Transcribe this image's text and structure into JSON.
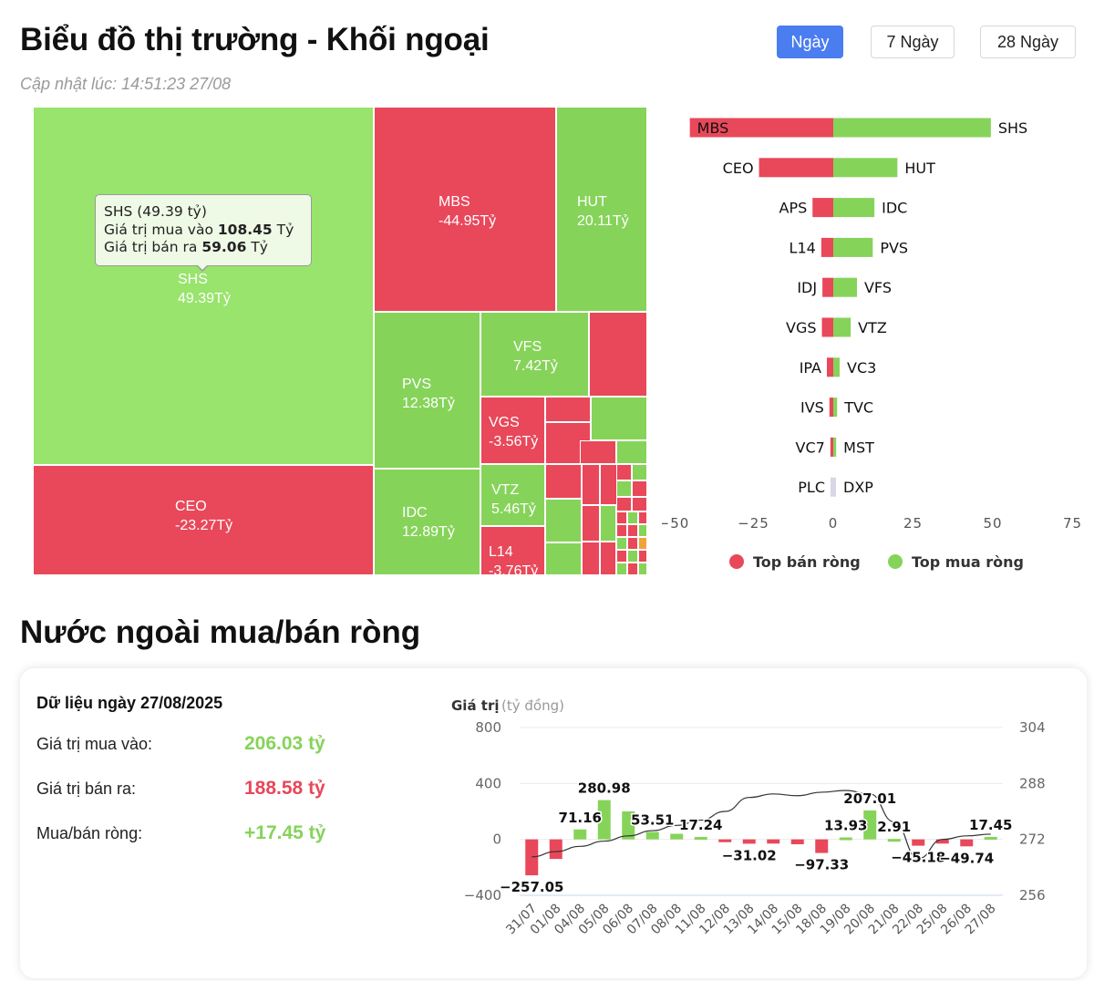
{
  "header": {
    "title": "Biểu đồ thị trường - Khối ngoại",
    "updated": "Cập nhật lúc: 14:51:23 27/08",
    "ranges": [
      "Ngày",
      "7 Ngày",
      "28 Ngày"
    ],
    "active_range": "Ngày"
  },
  "colors": {
    "positive": "#86d35a",
    "positive_light": "#98e46c",
    "negative": "#e8485a",
    "neutral": "#f0a33a",
    "accent": "#4a7df0"
  },
  "tooltip": {
    "title": "SHS (49.39 tỷ)",
    "buy_label": "Giá trị mua vào",
    "buy_value": "108.45",
    "sell_label": "Giá trị bán ra",
    "sell_value": "59.06",
    "unit": "Tỷ"
  },
  "section2": {
    "title": "Nước ngoài mua/bán ròng",
    "date_label": "Dữ liệu ngày 27/08/2025",
    "stats": [
      {
        "label": "Giá trị mua vào:",
        "value": "206.03 tỷ",
        "tone": "positive"
      },
      {
        "label": "Giá trị bán ra:",
        "value": "188.58 tỷ",
        "tone": "negative"
      },
      {
        "label": "Mua/bán ròng:",
        "value": "+17.45 tỷ",
        "tone": "positive"
      }
    ]
  },
  "chart_data": [
    {
      "type": "treemap",
      "unit": "Tỷ",
      "items": [
        {
          "name": "SHS",
          "label": "49.39Tỷ",
          "value": 49.39
        },
        {
          "name": "MBS",
          "label": "-44.95Tỷ",
          "value": -44.95
        },
        {
          "name": "HUT",
          "label": "20.11Tỷ",
          "value": 20.11
        },
        {
          "name": "CEO",
          "label": "-23.27Tỷ",
          "value": -23.27
        },
        {
          "name": "PVS",
          "label": "12.38Tỷ",
          "value": 12.38
        },
        {
          "name": "IDC",
          "label": "12.89Tỷ",
          "value": 12.89
        },
        {
          "name": "VFS",
          "label": "7.42Tỷ",
          "value": 7.42
        },
        {
          "name": "VGS",
          "label": "-3.56Tỷ",
          "value": -3.56
        },
        {
          "name": "VTZ",
          "label": "5.46Tỷ",
          "value": 5.46
        },
        {
          "name": "L14",
          "label": "-3.76Tỷ",
          "value": -3.76
        }
      ]
    },
    {
      "type": "bar",
      "orientation": "horizontal-diverging",
      "xlim": [
        -50,
        75
      ],
      "xticks": [
        "−50",
        "−25",
        "0",
        "25",
        "50",
        "75"
      ],
      "rows": [
        {
          "sell": "MBS",
          "sell_value": -44.95,
          "buy": "SHS",
          "buy_value": 49.39
        },
        {
          "sell": "CEO",
          "sell_value": -23.27,
          "buy": "HUT",
          "buy_value": 20.11
        },
        {
          "sell": "APS",
          "sell_value": -6.5,
          "buy": "IDC",
          "buy_value": 12.89
        },
        {
          "sell": "L14",
          "sell_value": -3.76,
          "buy": "PVS",
          "buy_value": 12.38
        },
        {
          "sell": "IDJ",
          "sell_value": -3.4,
          "buy": "VFS",
          "buy_value": 7.42
        },
        {
          "sell": "VGS",
          "sell_value": -3.56,
          "buy": "VTZ",
          "buy_value": 5.46
        },
        {
          "sell": "IPA",
          "sell_value": -2.0,
          "buy": "VC3",
          "buy_value": 2.0
        },
        {
          "sell": "IVS",
          "sell_value": -1.2,
          "buy": "TVC",
          "buy_value": 1.2
        },
        {
          "sell": "VC7",
          "sell_value": -0.9,
          "buy": "MST",
          "buy_value": 0.9
        },
        {
          "sell": "PLC",
          "sell_value": -0.4,
          "buy": "DXP",
          "buy_value": 0.4
        }
      ],
      "legend": [
        "Top bán ròng",
        "Top mua ròng"
      ],
      "legend_position": "bottom"
    },
    {
      "type": "bar+line",
      "y_title": "Giá trị",
      "y_unit": "(tỷ đồng)",
      "ylim": [
        -400,
        800
      ],
      "yticks": [
        "800",
        "400",
        "0",
        "−400"
      ],
      "y2lim": [
        256,
        304
      ],
      "y2ticks": [
        "304",
        "288",
        "272",
        "256"
      ],
      "categories": [
        "31/07",
        "01/08",
        "04/08",
        "05/08",
        "06/08",
        "07/08",
        "08/08",
        "11/08",
        "12/08",
        "13/08",
        "14/08",
        "15/08",
        "18/08",
        "19/08",
        "20/08",
        "21/08",
        "22/08",
        "25/08",
        "26/08",
        "27/08"
      ],
      "values": [
        -257.05,
        -140,
        71.16,
        280.98,
        200,
        53.51,
        40,
        17.24,
        -20,
        -31.02,
        -30,
        -35,
        -97.33,
        13.93,
        207.01,
        2.91,
        -45.18,
        -30,
        -49.74,
        17.45
      ],
      "labels": [
        "−257.05",
        "",
        "71.16",
        "280.98",
        "",
        "53.51",
        "",
        "17.24",
        "",
        "−31.02",
        "",
        "",
        "−97.33",
        "13.93",
        "207.01",
        "2.91",
        "−45.18",
        "",
        "−49.74",
        "17.45"
      ],
      "index": [
        267,
        268.5,
        270,
        271.5,
        273,
        274.5,
        276,
        277.5,
        280,
        284,
        285,
        284.5,
        285.5,
        286,
        285,
        277,
        266.5,
        272,
        273,
        273.5
      ]
    }
  ]
}
